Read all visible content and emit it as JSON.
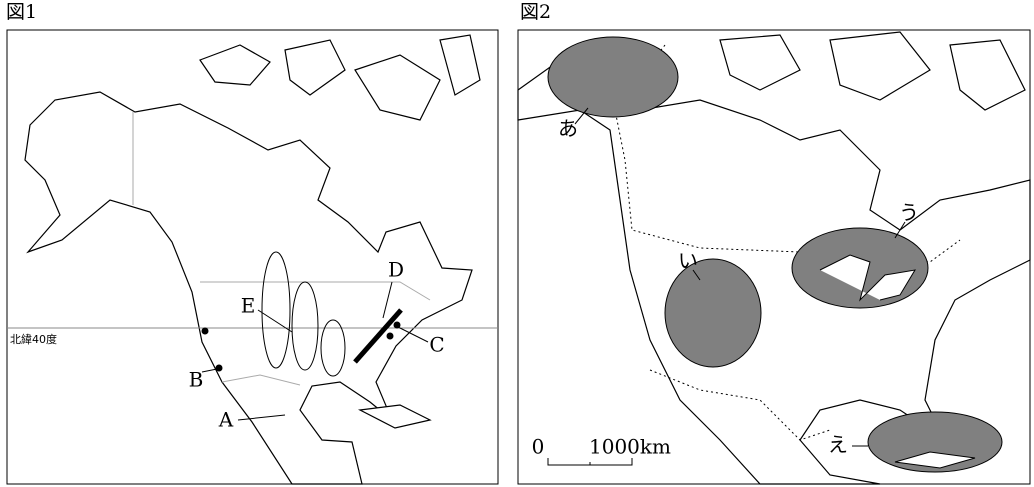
{
  "figure1": {
    "title": "図1",
    "latitude_label": "北緯40度",
    "labels": [
      "A",
      "B",
      "C",
      "D",
      "E"
    ]
  },
  "figure2": {
    "title": "図2",
    "labels": [
      "あ",
      "い",
      "う",
      "え"
    ],
    "scale": {
      "start": "0",
      "end": "1000km"
    }
  }
}
